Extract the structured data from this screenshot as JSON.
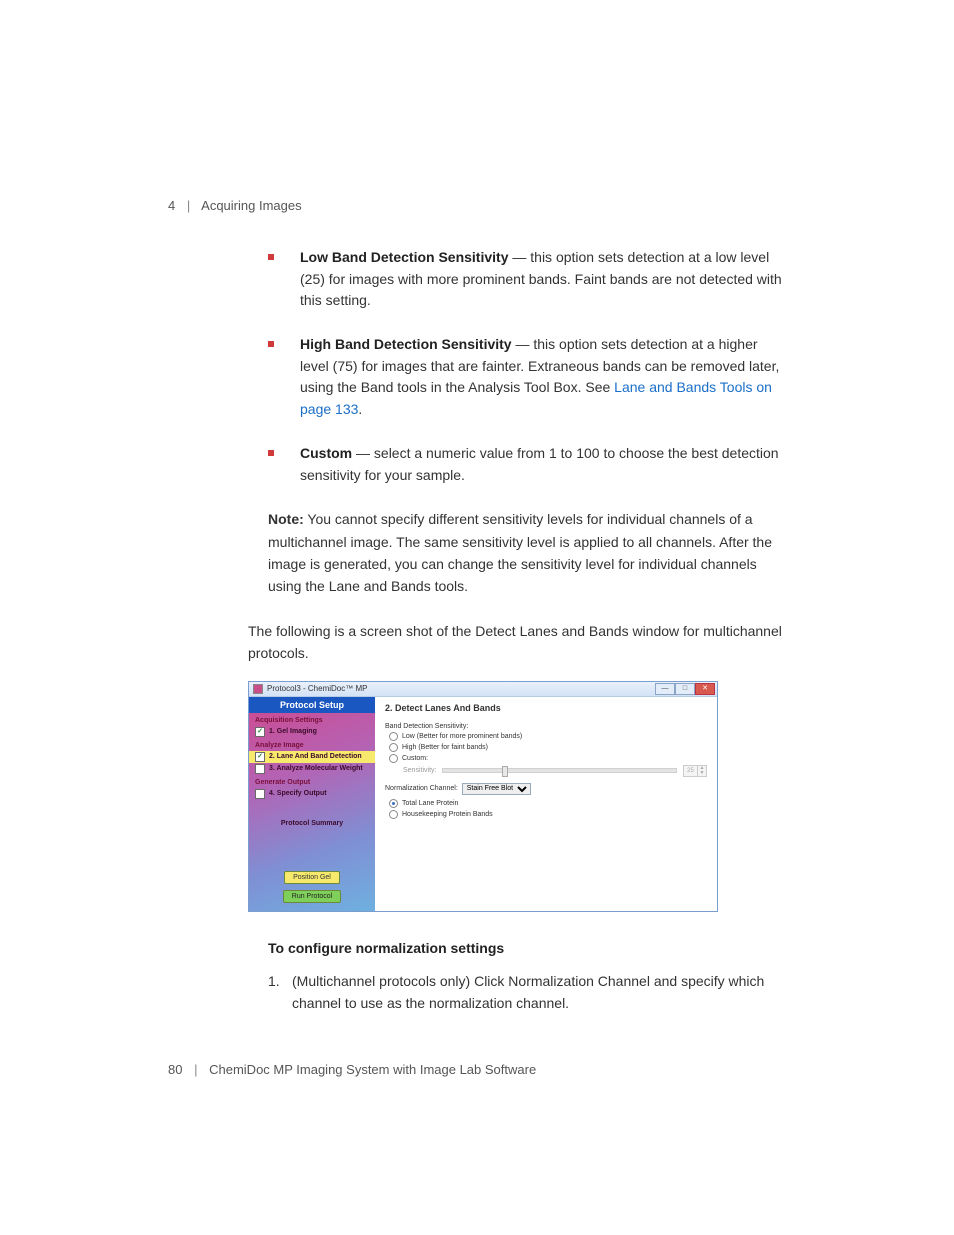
{
  "header": {
    "chapter_num": "4",
    "chapter_title": "Acquiring Images"
  },
  "bullets": [
    {
      "title": "Low Band Detection Sensitivity",
      "body": " — this option sets detection at a low level (25) for images with more prominent bands. Faint bands are not detected with this setting."
    },
    {
      "title": "High Band Detection Sensitivity",
      "body_before_link": " — this option sets detection at a higher level (75) for images that are fainter. Extraneous bands can be removed later, using the Band tools in the Analysis Tool Box. See ",
      "link_text": "Lane and Bands Tools on page 133",
      "body_after_link": "."
    },
    {
      "title": "Custom",
      "body": " — select a numeric value from 1 to 100 to choose the best detection sensitivity for your sample."
    }
  ],
  "note_label": "Note:",
  "note_body": " You cannot specify different sensitivity levels for individual channels of a multichannel image. The same sensitivity level is applied to all channels. After the image is generated, you can change the sensitivity level for individual channels using the Lane and Bands tools.",
  "intro": "The following is a screen shot of the Detect Lanes and Bands window for multichannel protocols.",
  "screenshot": {
    "window_title": "Protocol3 - ChemiDoc™ MP",
    "sidebar": {
      "header": "Protocol Setup",
      "sec1": "Acquisition Settings",
      "item1": "1. Gel Imaging",
      "sec2": "Analyze Image",
      "item2": "2. Lane And Band Detection",
      "item3": "3. Analyze Molecular Weight",
      "sec3": "Generate Output",
      "item4": "4. Specify Output",
      "summary": "Protocol Summary",
      "btn_position": "Position Gel",
      "btn_run": "Run Protocol"
    },
    "panel": {
      "title": "2. Detect Lanes And Bands",
      "sens_label": "Band Detection Sensitivity:",
      "opt_low": "Low (Better for more prominent bands)",
      "opt_high": "High (Better for faint bands)",
      "opt_custom": "Custom:",
      "slider_label": "Sensitivity:",
      "slider_value": "25",
      "norm_label": "Normalization Channel:",
      "norm_value": "Stain Free Blot",
      "opt_total": "Total Lane Protein",
      "opt_house": "Housekeeping Protein Bands"
    }
  },
  "subheading": "To configure normalization settings",
  "step1_num": "1.",
  "step1_text": "(Multichannel protocols only) Click Normalization Channel and specify which channel to use as the normalization channel.",
  "footer": {
    "page_num": "80",
    "doc_title": "ChemiDoc MP Imaging System with Image Lab Software"
  },
  "colors": {
    "bullet": "#d03a3a",
    "link": "#1a6fc9"
  }
}
